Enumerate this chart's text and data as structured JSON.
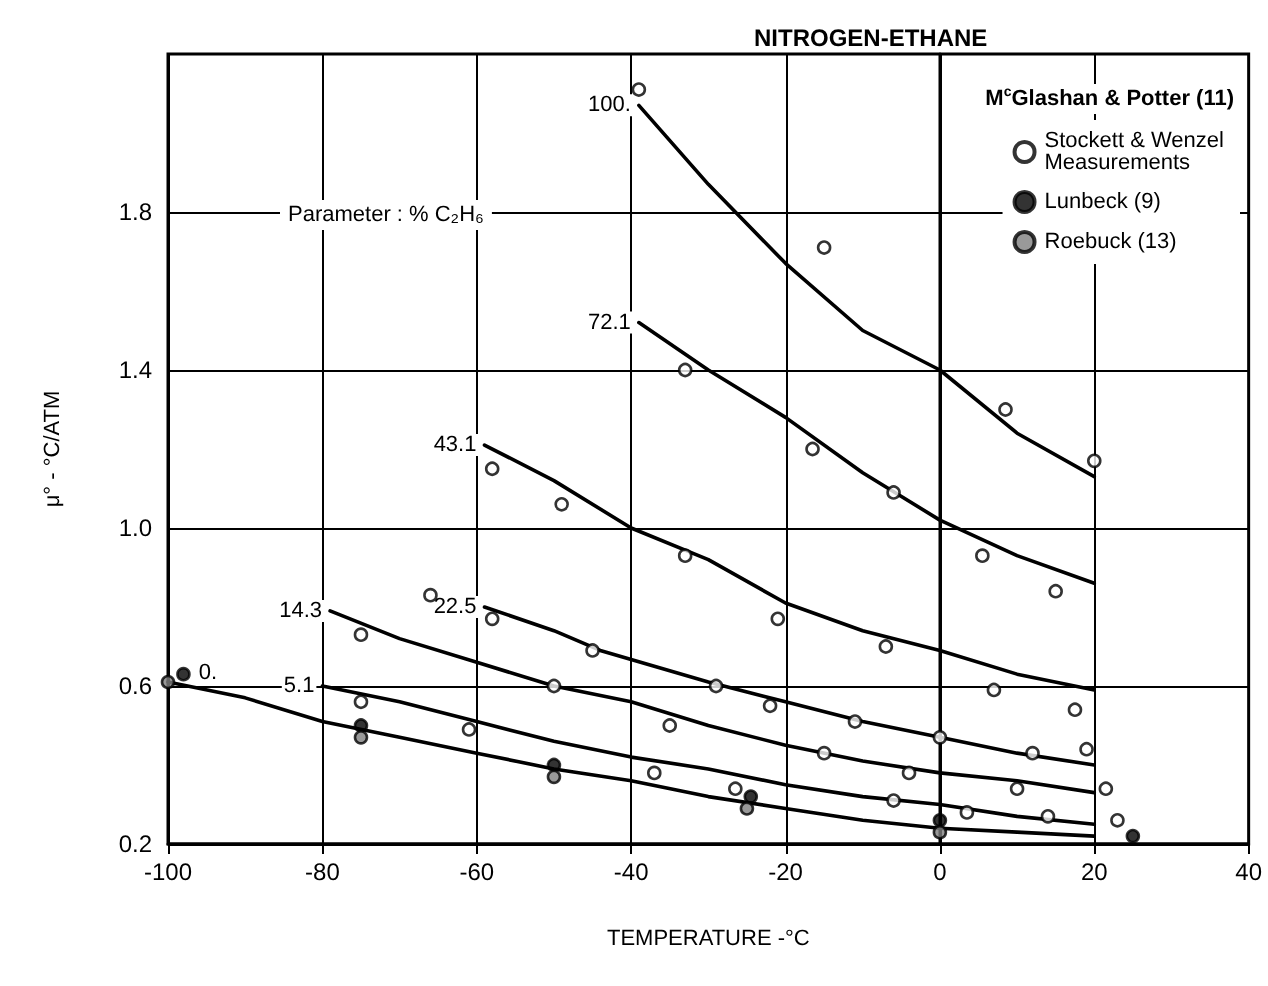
{
  "chart_data": {
    "type": "line",
    "title": "NITROGEN-ETHANE",
    "xlabel": "TEMPERATURE -°C",
    "ylabel": "μ° - °C/ATM",
    "legend_title": "M$^{c}$Glashan & Potter (11)",
    "legend": "top right",
    "grid": true,
    "marker": "circle",
    "line_style": "solid",
    "annotations": [
      "Parameter : % C₂H₆"
    ],
    "xlim": [
      -100,
      40
    ],
    "xticks": [
      -100,
      -80,
      -60,
      -40,
      -20,
      0,
      20,
      40
    ],
    "ylim": [
      0.2,
      2.2
    ],
    "yticks": [
      0.2,
      0.6,
      {
        "value": 1.0,
        "label": "1.0"
      },
      1.4,
      1.8
    ],
    "series": [
      {
        "name": "100.",
        "marker": "none",
        "color": "#000000",
        "x": [
          -39,
          -30,
          -20,
          -10,
          0,
          10,
          20
        ],
        "values": [
          2.07,
          1.87,
          1.67,
          1.5,
          1.4,
          1.24,
          1.13
        ]
      },
      {
        "name": "72.1",
        "marker": "none",
        "color": "#000000",
        "x": [
          -39,
          -30,
          -20,
          -10,
          0,
          10,
          20
        ],
        "values": [
          1.52,
          1.4,
          1.28,
          1.14,
          1.02,
          0.93,
          0.86
        ]
      },
      {
        "name": "43.1",
        "marker": "none",
        "color": "#000000",
        "x": [
          -59,
          -50,
          -40,
          -30,
          -20,
          -10,
          0,
          10,
          20
        ],
        "values": [
          1.21,
          1.12,
          1.0,
          0.92,
          0.81,
          0.74,
          0.69,
          0.63,
          0.59
        ]
      },
      {
        "name": "22.5",
        "marker": "none",
        "color": "#000000",
        "x": [
          -59,
          -50,
          -44,
          -30,
          -20,
          -10,
          0,
          10,
          20
        ],
        "values": [
          0.8,
          0.74,
          0.69,
          0.61,
          0.56,
          0.51,
          0.47,
          0.43,
          0.4
        ]
      },
      {
        "name": "14.3",
        "marker": "none",
        "color": "#000000",
        "x": [
          -79,
          -70,
          -60,
          -50,
          -40,
          -30,
          -20,
          -10,
          0,
          10,
          20
        ],
        "values": [
          0.79,
          0.72,
          0.66,
          0.6,
          0.56,
          0.5,
          0.45,
          0.41,
          0.38,
          0.36,
          0.33
        ]
      },
      {
        "name": "5.1",
        "marker": "none",
        "color": "#000000",
        "x": [
          -80,
          -70,
          -60,
          -50,
          -40,
          -30,
          -20,
          -10,
          0,
          10,
          20
        ],
        "values": [
          0.6,
          0.56,
          0.51,
          0.46,
          0.42,
          0.39,
          0.35,
          0.32,
          0.3,
          0.27,
          0.25
        ]
      },
      {
        "name": "0.",
        "marker": "none",
        "color": "#000000",
        "x": [
          -100,
          -90,
          -80,
          -70,
          -60,
          -50,
          -40,
          -30,
          -20,
          -10,
          0,
          10,
          20
        ],
        "values": [
          0.61,
          0.57,
          0.51,
          0.47,
          0.43,
          0.39,
          0.36,
          0.32,
          0.29,
          0.26,
          0.24,
          0.23,
          0.22
        ]
      },
      {
        "name": "Stockett & Wenzel Measurements",
        "type": "scatter",
        "color": "#ffffff",
        "x": [
          -39,
          -15,
          8.5,
          20,
          -33,
          -16.5,
          -6,
          5.5,
          15,
          -58,
          -49,
          -33,
          -21,
          -7,
          7,
          17.5,
          -66,
          -58,
          -45,
          -29,
          -22,
          -11,
          0,
          12,
          19,
          -75,
          -50,
          -35,
          -15,
          -4,
          10,
          21.5,
          -75,
          -61,
          -37,
          -26.5,
          -6,
          3.5,
          14,
          23
        ],
        "values": [
          2.11,
          1.71,
          1.3,
          1.17,
          1.4,
          1.2,
          1.09,
          0.93,
          0.84,
          1.15,
          1.06,
          0.93,
          0.77,
          0.7,
          0.59,
          0.54,
          0.83,
          0.77,
          0.69,
          0.6,
          0.55,
          0.51,
          0.47,
          0.43,
          0.44,
          0.73,
          0.6,
          0.5,
          0.43,
          0.38,
          0.34,
          0.34,
          0.56,
          0.49,
          0.38,
          0.34,
          0.31,
          0.28,
          0.27,
          0.26
        ]
      },
      {
        "name": "Lunbeck (9)",
        "type": "scatter",
        "color": "#000000",
        "x": [
          -98,
          -75,
          -50,
          -24.5,
          0,
          25
        ],
        "values": [
          0.63,
          0.5,
          0.4,
          0.32,
          0.26,
          0.22
        ]
      },
      {
        "name": "Roebuck (13)",
        "type": "scatter",
        "color": "#808080",
        "x": [
          -100,
          -75,
          -50,
          -25,
          0
        ],
        "values": [
          0.61,
          0.47,
          0.37,
          0.29,
          0.23
        ]
      }
    ]
  }
}
